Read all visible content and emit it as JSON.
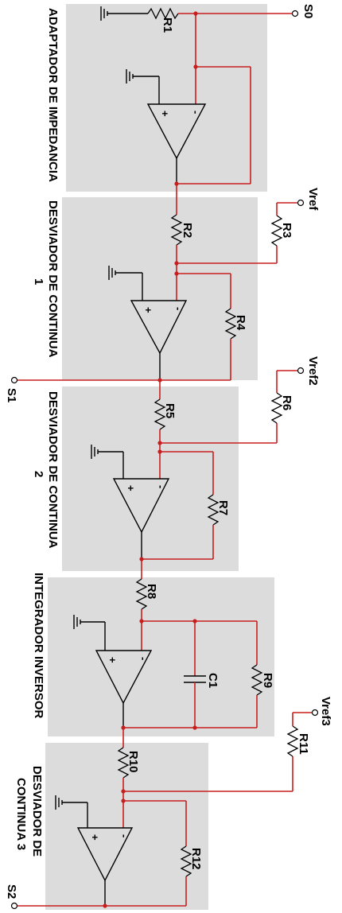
{
  "blocks": [
    {
      "title": "ADAPTADOR DE IMPEDANCIA"
    },
    {
      "title": "DESVIADOR DE CONTINUA",
      "sub": "1"
    },
    {
      "title": "DESVIADOR DE CONTINUA",
      "sub": "2"
    },
    {
      "title": "INTEGRADOR INVERSOR"
    },
    {
      "title": "DESVIADOR DE",
      "sub": "CONTINUA 3"
    }
  ],
  "components": {
    "R1": "R1",
    "R2": "R2",
    "R3": "R3",
    "R4": "R4",
    "R5": "R5",
    "R6": "R6",
    "R7": "R7",
    "R8": "R8",
    "R9": "R9",
    "R10": "R10",
    "R11": "R11",
    "R12": "R12",
    "C1": "C1"
  },
  "nodes": {
    "s0": "S0",
    "s1": "S1",
    "s2": "S2",
    "vref": "Vref",
    "vref2": "Vref2",
    "vref3": "Vref3"
  },
  "opamp": {
    "plus": "+",
    "minus": "-"
  },
  "colors": {
    "wire": "#c81e1e",
    "block": "#dcdcdc"
  }
}
